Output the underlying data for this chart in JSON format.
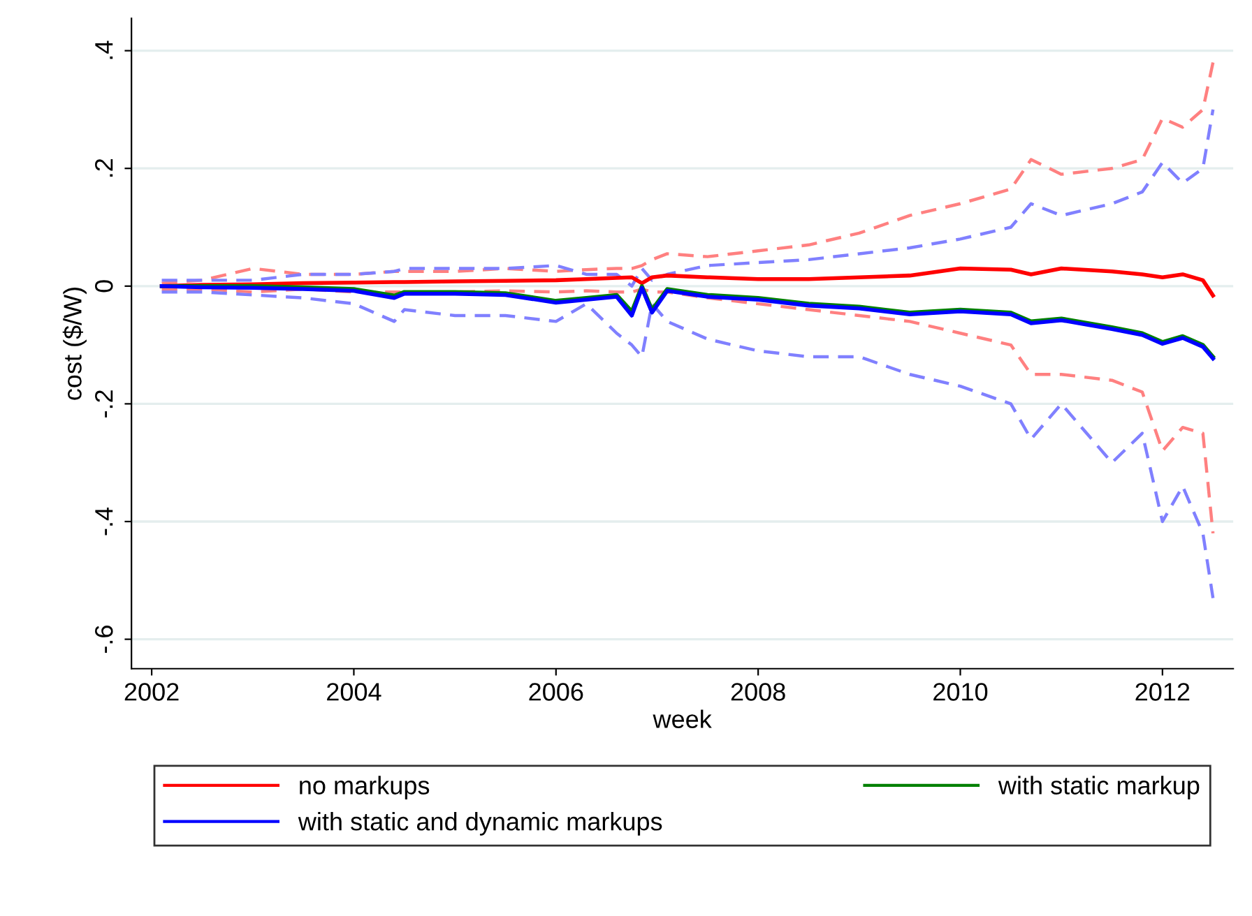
{
  "chart_data": {
    "type": "line",
    "xlabel": "week",
    "ylabel": "cost ($/W)",
    "x": [
      2002.1,
      2002.5,
      2003,
      2003.5,
      2004,
      2004.4,
      2004.5,
      2005,
      2005.5,
      2006,
      2006.3,
      2006.6,
      2006.75,
      2006.85,
      2006.95,
      2007.1,
      2007.5,
      2008,
      2008.5,
      2009,
      2009.5,
      2010,
      2010.5,
      2010.7,
      2011,
      2011.5,
      2011.8,
      2012,
      2012.2,
      2012.4,
      2012.5
    ],
    "series": [
      {
        "color": "#ff8080",
        "line_style": "dashed",
        "values": [
          0.005,
          0.01,
          0.03,
          0.02,
          0.02,
          0.025,
          0.025,
          0.025,
          0.03,
          0.025,
          0.028,
          0.03,
          0.03,
          0.035,
          0.045,
          0.055,
          0.05,
          0.06,
          0.07,
          0.09,
          0.12,
          0.14,
          0.165,
          0.215,
          0.19,
          0.2,
          0.215,
          0.285,
          0.27,
          0.3,
          0.38
        ]
      },
      {
        "color": "#ff8080",
        "line_style": "dashed",
        "values": [
          -0.005,
          -0.005,
          -0.01,
          -0.005,
          -0.01,
          -0.01,
          -0.01,
          -0.01,
          -0.008,
          -0.01,
          -0.008,
          -0.01,
          -0.01,
          -0.005,
          -0.01,
          -0.01,
          -0.02,
          -0.03,
          -0.04,
          -0.05,
          -0.06,
          -0.08,
          -0.1,
          -0.15,
          -0.15,
          -0.16,
          -0.18,
          -0.28,
          -0.24,
          -0.25,
          -0.42
        ]
      },
      {
        "color": "#8080ff",
        "line_style": "dashed",
        "values": [
          0.01,
          0.01,
          0.01,
          0.02,
          0.02,
          0.025,
          0.03,
          0.03,
          0.03,
          0.035,
          0.02,
          0.02,
          0.0,
          0.03,
          0.01,
          0.02,
          0.035,
          0.04,
          0.045,
          0.055,
          0.065,
          0.08,
          0.1,
          0.14,
          0.12,
          0.14,
          0.16,
          0.21,
          0.175,
          0.2,
          0.3
        ]
      },
      {
        "color": "#8080ff",
        "line_style": "dashed",
        "values": [
          -0.01,
          -0.01,
          -0.015,
          -0.02,
          -0.03,
          -0.06,
          -0.04,
          -0.05,
          -0.05,
          -0.06,
          -0.03,
          -0.08,
          -0.1,
          -0.12,
          -0.03,
          -0.06,
          -0.09,
          -0.11,
          -0.12,
          -0.12,
          -0.15,
          -0.17,
          -0.2,
          -0.26,
          -0.2,
          -0.3,
          -0.25,
          -0.4,
          -0.34,
          -0.42,
          -0.53
        ]
      },
      {
        "name": "no markups",
        "color": "#ff0000",
        "line_style": "solid",
        "values": [
          0,
          0.002,
          0.003,
          0.005,
          0.006,
          0.007,
          0.007,
          0.008,
          0.009,
          0.01,
          0.012,
          0.014,
          0.015,
          0.005,
          0.015,
          0.018,
          0.015,
          0.012,
          0.012,
          0.015,
          0.018,
          0.03,
          0.028,
          0.02,
          0.03,
          0.025,
          0.02,
          0.015,
          0.02,
          0.01,
          -0.016
        ]
      },
      {
        "name": "with static markup",
        "color": "#008000",
        "line_style": "solid",
        "values": [
          0,
          0,
          0,
          -0.002,
          -0.005,
          -0.016,
          -0.01,
          -0.01,
          -0.012,
          -0.025,
          -0.02,
          -0.015,
          -0.043,
          0,
          -0.04,
          -0.005,
          -0.015,
          -0.02,
          -0.03,
          -0.035,
          -0.045,
          -0.04,
          -0.045,
          -0.06,
          -0.055,
          -0.07,
          -0.08,
          -0.095,
          -0.085,
          -0.1,
          -0.12
        ]
      },
      {
        "name": "with static and dynamic markups",
        "color": "#0000ff",
        "line_style": "solid",
        "values": [
          0,
          -0.002,
          -0.003,
          -0.005,
          -0.008,
          -0.02,
          -0.013,
          -0.013,
          -0.015,
          -0.028,
          -0.023,
          -0.018,
          -0.05,
          -0.003,
          -0.045,
          -0.008,
          -0.018,
          -0.023,
          -0.033,
          -0.038,
          -0.048,
          -0.043,
          -0.048,
          -0.063,
          -0.058,
          -0.073,
          -0.083,
          -0.098,
          -0.088,
          -0.103,
          -0.123
        ]
      }
    ],
    "xlim": [
      2001.8,
      2012.7
    ],
    "xticks": [
      2002,
      2004,
      2006,
      2008,
      2010,
      2012
    ],
    "ylim": [
      -0.65,
      0.455
    ],
    "yticks": [
      {
        "value": -0.6,
        "label": "-.6"
      },
      {
        "value": -0.4,
        "label": "-.4"
      },
      {
        "value": -0.2,
        "label": "-.2"
      },
      0,
      {
        "value": 0.2,
        "label": ".2"
      },
      {
        "value": 0.4,
        "label": ".4"
      }
    ],
    "grid": "y",
    "legend": "bottom"
  }
}
